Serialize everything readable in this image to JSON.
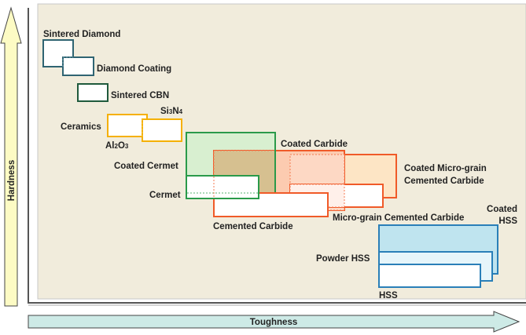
{
  "axes": {
    "y_label": "Hardness",
    "x_label": "Toughness"
  },
  "colors": {
    "panel": "#f1ecdc",
    "diamond": "#2f6472",
    "cbn": "#1f5a3c",
    "ceramics": "#f5b000",
    "cermet": "#2a9a4a",
    "carbide": "#f05a28",
    "hss": "#2a7fb8"
  },
  "materials": {
    "sintered_diamond": "Sintered Diamond",
    "diamond_coating": "Diamond Coating",
    "sintered_cbn": "Sintered CBN",
    "ceramics": "Ceramics",
    "si3n4": {
      "base1": "Si",
      "sub1": "3",
      "base2": "N",
      "sub2": "4"
    },
    "al2o3": {
      "base1": "Al",
      "sub1": "2",
      "base2": "O",
      "sub2": "3"
    },
    "coated_cermet": "Coated Cermet",
    "cermet": "Cermet",
    "coated_carbide": "Coated Carbide",
    "cemented_carbide": "Cemented Carbide",
    "coated_micro_grain_line1": "Coated Micro-grain",
    "coated_micro_grain_line2": "Cemented Carbide",
    "micro_grain_cemented_carbide": "Micro-grain Cemented Carbide",
    "coated_hss_line1": "Coated",
    "coated_hss_line2": "HSS",
    "powder_hss": "Powder HSS",
    "hss": "HSS"
  }
}
